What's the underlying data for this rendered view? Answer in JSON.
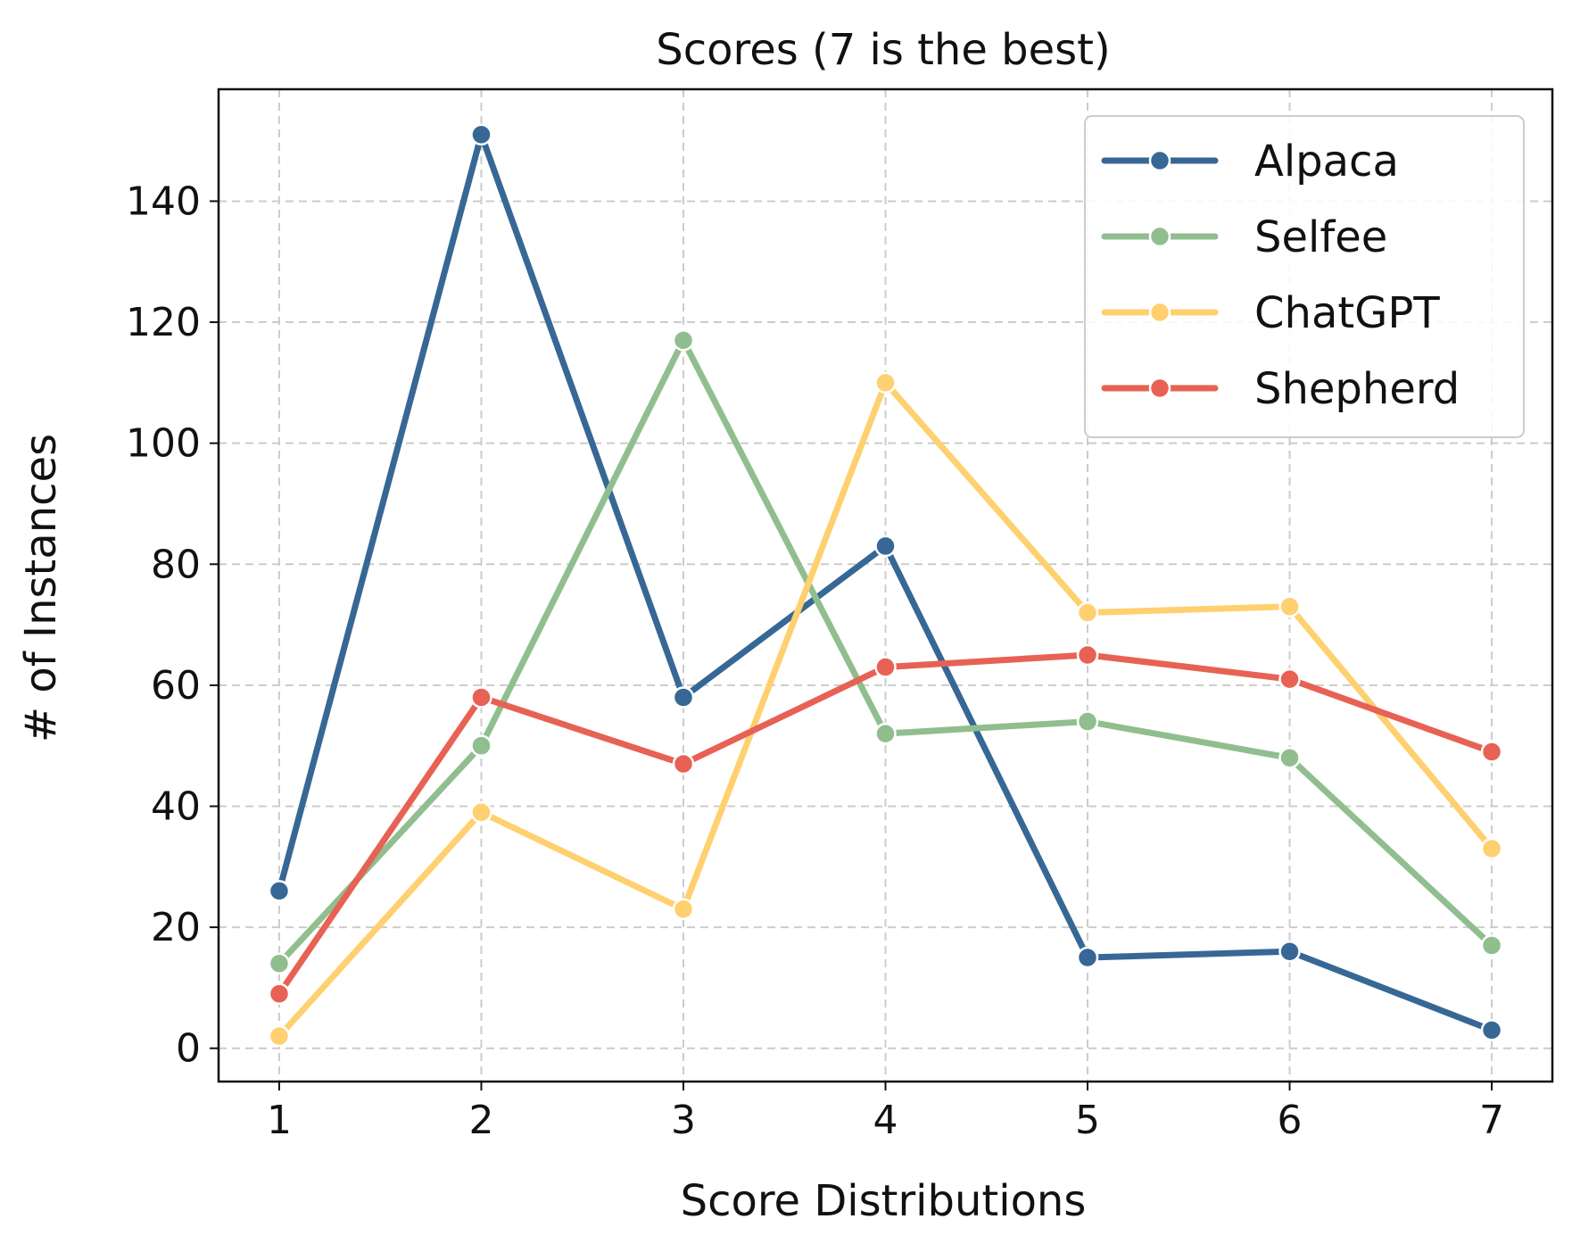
{
  "chart_data": {
    "type": "line",
    "title": "Scores (7 is the best)",
    "xlabel": "Score Distributions",
    "ylabel": "# of Instances",
    "x": [
      1,
      2,
      3,
      4,
      5,
      6,
      7
    ],
    "xlim": [
      0.7,
      7.3
    ],
    "ylim": [
      -5.5,
      158.5
    ],
    "yticks": [
      0,
      20,
      40,
      60,
      80,
      100,
      120,
      140
    ],
    "grid": true,
    "legend_position": "top-right",
    "series": [
      {
        "name": "Alpaca",
        "color": "#376795",
        "values": [
          26,
          151,
          58,
          83,
          15,
          16,
          3
        ]
      },
      {
        "name": "Selfee",
        "color": "#90BE8F",
        "values": [
          14,
          50,
          117,
          52,
          54,
          48,
          17
        ]
      },
      {
        "name": "ChatGPT",
        "color": "#FFD06F",
        "values": [
          2,
          39,
          23,
          110,
          72,
          73,
          33
        ]
      },
      {
        "name": "Shepherd",
        "color": "#E76254",
        "values": [
          9,
          58,
          47,
          63,
          65,
          61,
          49
        ]
      }
    ]
  }
}
